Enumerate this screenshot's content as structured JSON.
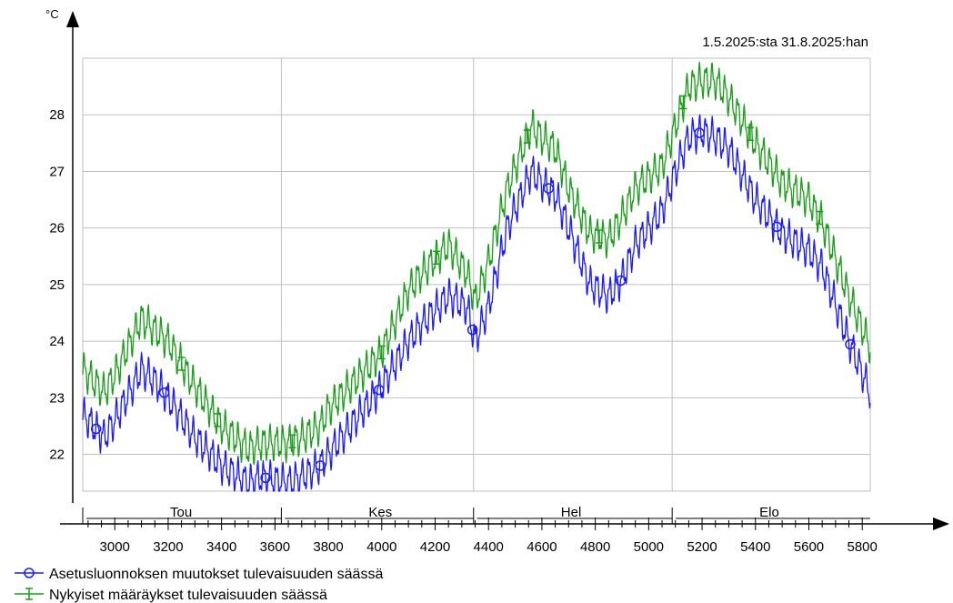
{
  "chart_data": {
    "type": "line",
    "unit_label": "°C",
    "date_range": "1.5.2025:sta  31.8.2025:han",
    "xlim": [
      2880,
      5830
    ],
    "ylim": [
      21.35,
      29.0
    ],
    "x_ticks": [
      3000,
      3200,
      3400,
      3600,
      3800,
      4000,
      4200,
      4400,
      4600,
      4800,
      5000,
      5200,
      5400,
      5600,
      5800
    ],
    "y_ticks": [
      22,
      23,
      24,
      25,
      26,
      27,
      28
    ],
    "month_markers": [
      {
        "label": "Tou",
        "x": 2880
      },
      {
        "label": "Kes",
        "x": 3624
      },
      {
        "label": "Hel",
        "x": 4344
      },
      {
        "label": "Elo",
        "x": 5088
      }
    ],
    "grid": true,
    "legend_position": "bottom-left",
    "series": [
      {
        "name": "Asetusluonnoksen muutokset tulevaisuuden säässä",
        "color": "#1a1aff",
        "marker": "circle",
        "daily_amplitude": 0.35,
        "x": [
          2880,
          2920,
          2960,
          3000,
          3100,
          3150,
          3200,
          3300,
          3400,
          3500,
          3550,
          3650,
          3700,
          3770,
          3800,
          3900,
          4000,
          4100,
          4150,
          4250,
          4320,
          4350,
          4400,
          4470,
          4560,
          4600,
          4650,
          4700,
          4780,
          4850,
          4900,
          4950,
          5050,
          5100,
          5150,
          5200,
          5250,
          5300,
          5400,
          5500,
          5600,
          5650,
          5750,
          5830
        ],
        "y": [
          22.7,
          22.5,
          22.3,
          22.6,
          23.5,
          23.3,
          23.0,
          22.3,
          21.8,
          21.5,
          21.6,
          21.5,
          21.6,
          21.8,
          22.0,
          22.6,
          23.2,
          24.0,
          24.3,
          24.8,
          24.6,
          24.0,
          24.6,
          26.0,
          27.0,
          26.8,
          26.6,
          26.0,
          25.0,
          24.8,
          25.1,
          25.7,
          26.3,
          27.0,
          27.6,
          27.7,
          27.6,
          27.4,
          26.5,
          25.9,
          25.6,
          25.3,
          24.0,
          23.1
        ],
        "markers_x": [
          2930,
          3185,
          3565,
          3770,
          3990,
          4340,
          4625,
          4895,
          5190,
          5480,
          5755
        ]
      },
      {
        "name": "Nykyiset määräykset tulevaisuuden säässä",
        "color": "#1a9e1a",
        "marker": "plus",
        "daily_amplitude": 0.35,
        "x": [
          2880,
          2920,
          2960,
          3000,
          3100,
          3150,
          3200,
          3300,
          3400,
          3500,
          3550,
          3650,
          3700,
          3770,
          3800,
          3900,
          4000,
          4100,
          4150,
          4250,
          4320,
          4350,
          4400,
          4470,
          4560,
          4600,
          4650,
          4700,
          4780,
          4850,
          4900,
          4950,
          5050,
          5100,
          5150,
          5200,
          5250,
          5300,
          5400,
          5500,
          5600,
          5650,
          5750,
          5830
        ],
        "y": [
          23.5,
          23.3,
          23.1,
          23.4,
          24.4,
          24.2,
          24.0,
          23.2,
          22.5,
          22.1,
          22.2,
          22.2,
          22.3,
          22.5,
          22.8,
          23.3,
          23.8,
          24.9,
          25.2,
          25.7,
          25.2,
          24.7,
          25.4,
          26.7,
          27.8,
          27.6,
          27.4,
          26.7,
          25.9,
          25.8,
          26.2,
          26.7,
          27.1,
          27.8,
          28.5,
          28.6,
          28.6,
          28.3,
          27.5,
          26.8,
          26.5,
          26.1,
          24.8,
          23.9
        ],
        "markers_x": [
          3250,
          3385,
          3665,
          4000,
          4205,
          4545,
          4815,
          5130,
          5380,
          5640
        ]
      }
    ]
  }
}
